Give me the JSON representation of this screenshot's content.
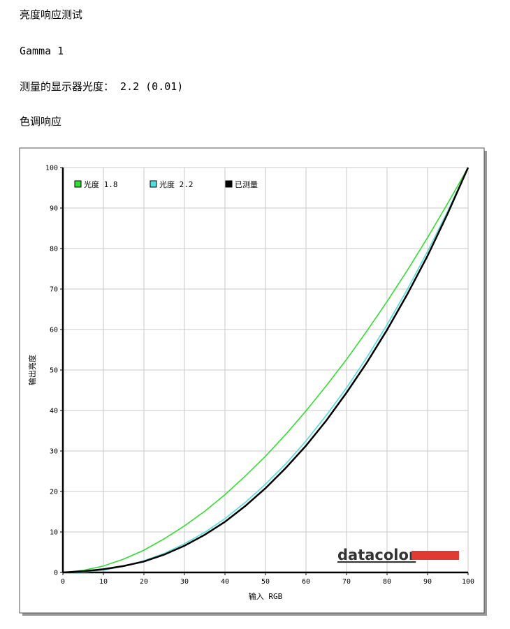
{
  "header": {
    "title": "亮度响应测试",
    "subtitle": "Gamma 1",
    "measured": "测量的显示器光度： 2.2 (0.01)",
    "section": "色调响应"
  },
  "branding": "datacolor",
  "chart_data": {
    "type": "line",
    "x": [
      0,
      5,
      10,
      15,
      20,
      25,
      30,
      35,
      40,
      45,
      50,
      55,
      60,
      65,
      70,
      75,
      80,
      85,
      90,
      95,
      100
    ],
    "series": [
      {
        "name": "光度 1.8",
        "color": "#33dd33",
        "values": [
          0,
          0.5,
          1.6,
          3.3,
          5.5,
          8.3,
          11.5,
          15.1,
          19.2,
          23.8,
          28.7,
          34.1,
          39.9,
          46.1,
          52.6,
          59.6,
          66.9,
          74.6,
          82.7,
          91.2,
          100
        ]
      },
      {
        "name": "光度 2.2",
        "color": "#55dddd",
        "values": [
          0,
          0.1,
          0.6,
          1.5,
          2.9,
          4.7,
          7.1,
          9.9,
          13.3,
          17.3,
          21.8,
          26.8,
          32.5,
          38.8,
          45.6,
          53.1,
          61.2,
          69.9,
          79.3,
          89.3,
          100
        ]
      },
      {
        "name": "已测量",
        "color": "#000000",
        "values": [
          0,
          0.3,
          0.8,
          1.6,
          2.7,
          4.4,
          6.6,
          9.3,
          12.5,
          16.4,
          20.8,
          25.8,
          31.3,
          37.5,
          44.4,
          51.8,
          59.9,
          68.7,
          78.2,
          88.7,
          100
        ]
      }
    ],
    "xlim": [
      0,
      100
    ],
    "ylim": [
      0,
      100
    ],
    "xticks": [
      0,
      10,
      20,
      30,
      40,
      50,
      60,
      70,
      80,
      90,
      100
    ],
    "yticks": [
      0,
      10,
      20,
      30,
      40,
      50,
      60,
      70,
      80,
      90,
      100
    ],
    "xlabel": "输入 RGB",
    "ylabel": "输出亮度",
    "grid": true,
    "legend": "upper left"
  }
}
